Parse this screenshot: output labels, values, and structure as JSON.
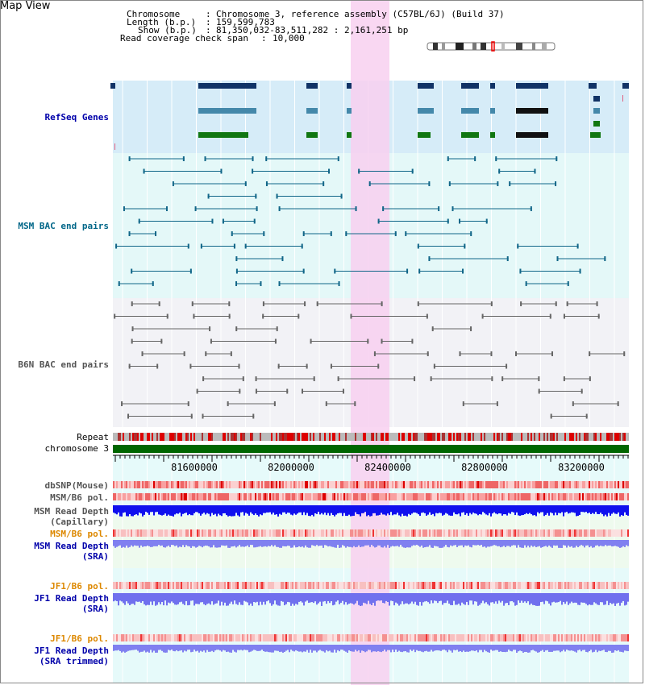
{
  "header": {
    "title": "Map View",
    "chromosome_label": "Chromosome",
    "chromosome_value": "Chromosome 3, reference assembly (C57BL/6J) (Build 37)",
    "length_label": "Length (b.p.)",
    "length_value": "159,599,783",
    "show_label": "Show (b.p.)",
    "show_value": "81,350,032-83,511,282 : 2,161,251 bp",
    "coverage_label": "Read coverage check span",
    "coverage_value": "10,000"
  },
  "tracks": {
    "refseq": "RefSeq Genes",
    "msm_bac": "MSM BAC end pairs",
    "b6n_bac": "B6N BAC end pairs",
    "repeat": "Repeat",
    "chromosome": "chromosome 3",
    "dbsnp": "dbSNP(Mouse)",
    "msm_b6_pol_1": "MSM/B6 pol.",
    "msm_depth_cap_1": "MSM Read Depth",
    "msm_depth_cap_2": "(Capillary)",
    "msm_b6_pol_2": "MSM/B6 pol.",
    "msm_depth_sra_1": "MSM Read Depth",
    "msm_depth_sra_2": "(SRA)",
    "jf1_pol_1": "JF1/B6 pol.",
    "jf1_depth_1": "JF1 Read Depth",
    "jf1_depth_2": "(SRA)",
    "jf1_pol_2": "JF1/B6 pol.",
    "jf1_trim_1": "JF1 Read Depth",
    "jf1_trim_2": "(SRA trimmed)"
  },
  "axis": {
    "ticks": [
      "81600000",
      "82000000",
      "82400000",
      "82800000",
      "83200000"
    ]
  },
  "colors": {
    "refseq_bg": "#d6ecf8",
    "msm_bg": "#e4f8f8",
    "b6n_bg": "#f2f2f6",
    "highlight": "#f8d0f0",
    "refseq_label": "#0000aa",
    "msm_label": "#006688",
    "b6n_label": "#555555",
    "orange_label": "#dd8800",
    "blue_label": "#0000aa"
  }
}
